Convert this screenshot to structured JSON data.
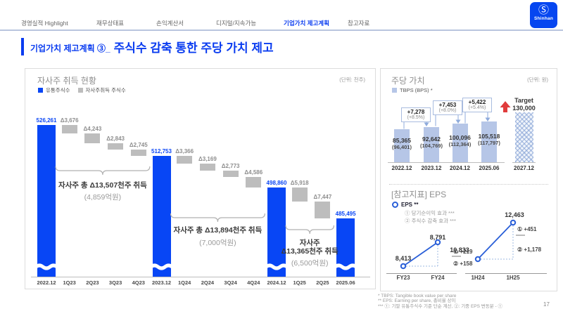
{
  "brand": {
    "logo_symbol": "Ⓢ",
    "logo_text": "Shinhan"
  },
  "nav": {
    "tabs": [
      {
        "label": "경영실적 Highlight",
        "active": false
      },
      {
        "label": "재무상태표",
        "active": false
      },
      {
        "label": "손익계산서",
        "active": false
      },
      {
        "label": "디지털/지속가능",
        "active": false
      },
      {
        "label": "기업가치 제고계획",
        "active": true
      },
      {
        "label": "참고자료",
        "active": false
      }
    ]
  },
  "title": {
    "prefix": "기업가치 제고계획 ③_",
    "main": "주식수 감축 통한 주당 가치 제고"
  },
  "colors": {
    "shinhan_blue": "#0a3cf0",
    "bar_blue": "#0846f5",
    "bar_gray": "#bdbdbd",
    "tbps_bar": "#b6c6e7",
    "accent_red": "#e03c3c",
    "line_blue": "#2a5fd8"
  },
  "chart_data": [
    {
      "type": "bar",
      "variant": "waterfall",
      "title": "자사주 취득 현황",
      "unit": "(단위: 천주)",
      "legend": [
        {
          "label": "유통주식수",
          "color_key": "bar_blue"
        },
        {
          "label": "자사주취득 주식수",
          "color_key": "bar_gray"
        }
      ],
      "columns": [
        {
          "x": "2022.12",
          "kind": "total",
          "value": 526261,
          "label": "526,261"
        },
        {
          "x": "1Q23",
          "kind": "delta",
          "value": 3676,
          "label": "Δ3,676"
        },
        {
          "x": "2Q23",
          "kind": "delta",
          "value": 4243,
          "label": "Δ4,243"
        },
        {
          "x": "3Q23",
          "kind": "delta",
          "value": 2843,
          "label": "Δ2,843"
        },
        {
          "x": "4Q23",
          "kind": "delta",
          "value": 2745,
          "label": "Δ2,745"
        },
        {
          "x": "2023.12",
          "kind": "total",
          "value": 512753,
          "label": "512,753"
        },
        {
          "x": "1Q24",
          "kind": "delta",
          "value": 3366,
          "label": "Δ3,366"
        },
        {
          "x": "2Q24",
          "kind": "delta",
          "value": 3169,
          "label": "Δ3,169"
        },
        {
          "x": "3Q24",
          "kind": "delta",
          "value": 2773,
          "label": "Δ2,773"
        },
        {
          "x": "4Q24",
          "kind": "delta",
          "value": 4586,
          "label": "Δ4,586"
        },
        {
          "x": "2024.12",
          "kind": "total",
          "value": 498860,
          "label": "498,860"
        },
        {
          "x": "1Q25",
          "kind": "delta",
          "value": 5918,
          "label": "Δ5,918"
        },
        {
          "x": "2Q25",
          "kind": "delta",
          "value": 7447,
          "label": "Δ7,447"
        },
        {
          "x": "2025.06",
          "kind": "total",
          "value": 485495,
          "label": "485,495"
        }
      ],
      "annotations": [
        {
          "lines": [
            "자사주 총 Δ13,507천주 취득"
          ],
          "sub": "(4,859억원)",
          "from_col": 1,
          "to_col": 4
        },
        {
          "lines": [
            "자사주 총 Δ13,894천주 취득"
          ],
          "sub": "(7,000억원)",
          "from_col": 6,
          "to_col": 9
        },
        {
          "lines": [
            "자사주",
            "Δ13,365천주 취득"
          ],
          "sub": "(6,500억원)",
          "from_col": 11,
          "to_col": 12
        }
      ]
    },
    {
      "type": "bar",
      "title": "주당 가치",
      "unit": "(단위: 원)",
      "legend": "TBPS (BPS) *",
      "categories": [
        "2022.12",
        "2023.12",
        "2024.12",
        "2025.06",
        "2027.12"
      ],
      "tbps": [
        85365,
        92642,
        100096,
        105518
      ],
      "bar_labels": [
        [
          "85,365",
          "(96,401)"
        ],
        [
          "92,642",
          "(104,769)"
        ],
        [
          "100,096",
          "(112,364)"
        ],
        [
          "105,518",
          "(117,797)"
        ]
      ],
      "deltas": [
        {
          "label": "+7,278",
          "pct": "(+8.5%)"
        },
        {
          "label": "+7,453",
          "pct": "(+8.0%)"
        },
        {
          "label": "+5,422",
          "pct": "(+5.4%)"
        }
      ],
      "target": {
        "label": "Target",
        "value": 130000,
        "value_label": "130,000",
        "category": "2027.12"
      }
    },
    {
      "type": "line",
      "title": "[참고지표] EPS",
      "legend": "EPS **",
      "notes": [
        "① 당기순이익 효과 ***",
        "② 주식수 감축 효과 ***"
      ],
      "groups": [
        {
          "categories": [
            "FY23",
            "FY24"
          ],
          "values": [
            8413,
            8791
          ],
          "labels": [
            "8,413",
            "8,791"
          ],
          "effects": [
            "① +219",
            "② +158"
          ]
        },
        {
          "categories": [
            "1H24",
            "1H25"
          ],
          "values": [
            10833,
            12463
          ],
          "labels": [
            "10,833",
            "12,463"
          ],
          "effects": [
            "① +451",
            "② +1,178"
          ]
        }
      ]
    }
  ],
  "footnotes": [
    "* TBPS: Tangible book value per share",
    "** EPS: Earning per share, 총비율 상이",
    "*** ①: 기말 유통주식수 기준 단순 계산, ②: 기중 EPS 변동분 - ①"
  ],
  "page_number": "17"
}
